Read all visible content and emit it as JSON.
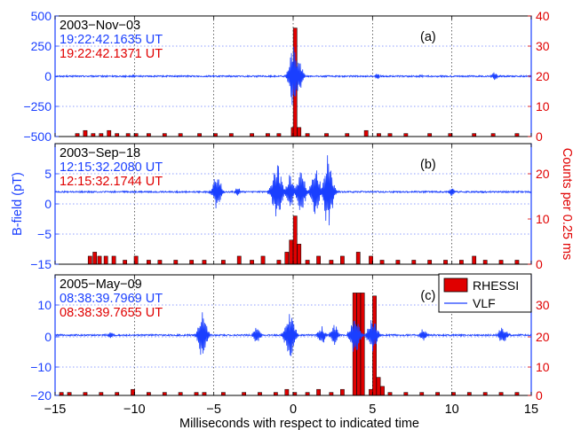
{
  "colors": {
    "left_axis": "#1a3fff",
    "right_axis": "#e00000",
    "bar_fill": "#e00000",
    "vlf_line": "#1a3fff",
    "grid": "#2040ff"
  },
  "x_axis": {
    "label": "Milliseconds with respect to indicated time",
    "range": [
      -15,
      15
    ],
    "ticks": [
      "-15",
      "-10",
      "-5",
      "0",
      "5",
      "10",
      "15"
    ]
  },
  "y_axis_label_left": "B-field (pT)",
  "y_axis_label_right": "Counts per 0.25 ms",
  "legend": {
    "rhessi": "RHESSI",
    "vlf": "VLF"
  },
  "chart_data": [
    {
      "type": "bar+line",
      "panel": "(a)",
      "date": "2003−Nov−03",
      "time_blue": "19:22:42.1635 UT",
      "time_red": "19:22:42.1371 UT",
      "ylim_left": [
        -500,
        500
      ],
      "ylim_right": [
        0,
        40
      ],
      "yticks_left": [
        "500",
        "250",
        "0",
        "−250",
        "−500"
      ],
      "yticks_right": [
        "40",
        "30",
        "20",
        "10",
        "0"
      ],
      "rhessi_counts": [
        {
          "t": -13.6,
          "c": 1
        },
        {
          "t": -13.1,
          "c": 2
        },
        {
          "t": -12.6,
          "c": 1
        },
        {
          "t": -12.1,
          "c": 1
        },
        {
          "t": -11.6,
          "c": 2
        },
        {
          "t": -11.1,
          "c": 1
        },
        {
          "t": -10.4,
          "c": 1
        },
        {
          "t": -9.9,
          "c": 1
        },
        {
          "t": -9.1,
          "c": 1
        },
        {
          "t": -8.1,
          "c": 1
        },
        {
          "t": -7.1,
          "c": 1
        },
        {
          "t": -5.9,
          "c": 1
        },
        {
          "t": -4.9,
          "c": 1
        },
        {
          "t": -3.9,
          "c": 1
        },
        {
          "t": -2.6,
          "c": 1
        },
        {
          "t": -1.6,
          "c": 1
        },
        {
          "t": -0.9,
          "c": 1
        },
        {
          "t": 0.0,
          "c": 3
        },
        {
          "t": 0.125,
          "c": 36
        },
        {
          "t": 0.375,
          "c": 3
        },
        {
          "t": 0.9,
          "c": 1
        },
        {
          "t": 2.1,
          "c": 1
        },
        {
          "t": 3.4,
          "c": 1
        },
        {
          "t": 4.6,
          "c": 2
        },
        {
          "t": 5.4,
          "c": 1
        },
        {
          "t": 6.1,
          "c": 1
        },
        {
          "t": 7.1,
          "c": 1
        },
        {
          "t": 8.6,
          "c": 1
        },
        {
          "t": 9.9,
          "c": 1
        },
        {
          "t": 11.4,
          "c": 1
        },
        {
          "t": 12.6,
          "c": 1
        },
        {
          "t": 14.1,
          "c": 1
        }
      ],
      "vlf_impulses": [
        {
          "t": -10.0,
          "a": 15,
          "w": 0.15
        },
        {
          "t": 0.0,
          "a": 300,
          "w": 0.35
        },
        {
          "t": 0.4,
          "a": 120,
          "w": 0.3
        },
        {
          "t": 5.3,
          "a": 30,
          "w": 0.2
        },
        {
          "t": 8.0,
          "a": 12,
          "w": 0.2
        },
        {
          "t": 12.7,
          "a": 40,
          "w": 0.25
        }
      ]
    },
    {
      "type": "bar+line",
      "panel": "(b)",
      "date": "2003−Sep−18",
      "time_blue": "12:15:32.2080 UT",
      "time_red": "12:15:32.1744 UT",
      "ylim_left": [
        -15,
        10
      ],
      "ylim_right": [
        0,
        30
      ],
      "yticks_left": [
        "5",
        "0",
        "−5",
        "−15"
      ],
      "yticks_right": [
        "20",
        "10",
        "0"
      ],
      "rhessi_counts": [
        {
          "t": -12.8,
          "c": 2
        },
        {
          "t": -12.5,
          "c": 3
        },
        {
          "t": -12.2,
          "c": 2
        },
        {
          "t": -11.8,
          "c": 2
        },
        {
          "t": -11.3,
          "c": 2
        },
        {
          "t": -10.6,
          "c": 1
        },
        {
          "t": -9.9,
          "c": 2
        },
        {
          "t": -9.1,
          "c": 1
        },
        {
          "t": -8.4,
          "c": 1
        },
        {
          "t": -7.4,
          "c": 1
        },
        {
          "t": -6.4,
          "c": 1
        },
        {
          "t": -5.6,
          "c": 1
        },
        {
          "t": -4.4,
          "c": 1
        },
        {
          "t": -3.4,
          "c": 2
        },
        {
          "t": -2.6,
          "c": 1
        },
        {
          "t": -1.9,
          "c": 2
        },
        {
          "t": -0.9,
          "c": 1
        },
        {
          "t": -0.4,
          "c": 3
        },
        {
          "t": -0.125,
          "c": 6
        },
        {
          "t": 0.125,
          "c": 12
        },
        {
          "t": 0.375,
          "c": 5
        },
        {
          "t": 0.9,
          "c": 1
        },
        {
          "t": 1.6,
          "c": 2
        },
        {
          "t": 2.4,
          "c": 1
        },
        {
          "t": 3.1,
          "c": 2
        },
        {
          "t": 4.1,
          "c": 3
        },
        {
          "t": 4.9,
          "c": 2
        },
        {
          "t": 5.6,
          "c": 1
        },
        {
          "t": 6.6,
          "c": 1
        },
        {
          "t": 7.6,
          "c": 1
        },
        {
          "t": 8.6,
          "c": 1
        },
        {
          "t": 9.6,
          "c": 1
        },
        {
          "t": 10.6,
          "c": 1
        },
        {
          "t": 11.4,
          "c": 2
        },
        {
          "t": 12.1,
          "c": 1
        },
        {
          "t": 13.1,
          "c": 1
        },
        {
          "t": 14.1,
          "c": 1
        }
      ],
      "vlf_impulses": [
        {
          "t": -4.8,
          "a": 4,
          "w": 0.35
        },
        {
          "t": -3.5,
          "a": 1,
          "w": 0.2
        },
        {
          "t": -1.0,
          "a": 6,
          "w": 0.45
        },
        {
          "t": -0.2,
          "a": 4,
          "w": 0.35
        },
        {
          "t": 0.5,
          "a": 5,
          "w": 0.4
        },
        {
          "t": 1.4,
          "a": 6,
          "w": 0.4
        },
        {
          "t": 2.2,
          "a": 8,
          "w": 0.4
        },
        {
          "t": 10.0,
          "a": 1,
          "w": 0.2
        }
      ]
    },
    {
      "type": "bar+line",
      "panel": "(c)",
      "date": "2005−May−09",
      "time_blue": "08:38:39.7969 UT",
      "time_red": "08:38:39.7655 UT",
      "ylim_left": [
        -20,
        20
      ],
      "ylim_right": [
        0,
        40
      ],
      "yticks_left": [
        "10",
        "0",
        "−10",
        "−20"
      ],
      "yticks_right": [
        "30",
        "20",
        "10",
        "0"
      ],
      "rhessi_counts": [
        {
          "t": -14.6,
          "c": 1
        },
        {
          "t": -14.1,
          "c": 1
        },
        {
          "t": -13.1,
          "c": 1
        },
        {
          "t": -12.1,
          "c": 1
        },
        {
          "t": -11.1,
          "c": 1
        },
        {
          "t": -10.1,
          "c": 2
        },
        {
          "t": -9.1,
          "c": 1
        },
        {
          "t": -8.1,
          "c": 1
        },
        {
          "t": -7.1,
          "c": 1
        },
        {
          "t": -6.1,
          "c": 1
        },
        {
          "t": -5.6,
          "c": 1
        },
        {
          "t": -4.4,
          "c": 1
        },
        {
          "t": -3.1,
          "c": 1
        },
        {
          "t": -2.1,
          "c": 1
        },
        {
          "t": -1.1,
          "c": 1
        },
        {
          "t": -0.4,
          "c": 2
        },
        {
          "t": 0.1,
          "c": 1
        },
        {
          "t": 0.9,
          "c": 1
        },
        {
          "t": 1.6,
          "c": 2
        },
        {
          "t": 2.4,
          "c": 1
        },
        {
          "t": 3.1,
          "c": 2
        },
        {
          "t": 3.875,
          "c": 34
        },
        {
          "t": 4.125,
          "c": 34
        },
        {
          "t": 4.375,
          "c": 34
        },
        {
          "t": 4.9,
          "c": 2
        },
        {
          "t": 5.125,
          "c": 33
        },
        {
          "t": 5.375,
          "c": 6
        },
        {
          "t": 5.625,
          "c": 3
        },
        {
          "t": 6.1,
          "c": 1
        },
        {
          "t": 7.1,
          "c": 1
        },
        {
          "t": 8.1,
          "c": 1
        },
        {
          "t": 9.1,
          "c": 1
        },
        {
          "t": 10.1,
          "c": 1
        },
        {
          "t": 11.1,
          "c": 1
        },
        {
          "t": 12.1,
          "c": 1
        },
        {
          "t": 13.1,
          "c": 1
        },
        {
          "t": 14.1,
          "c": 1
        }
      ],
      "vlf_impulses": [
        {
          "t": -11.5,
          "a": 1,
          "w": 0.2
        },
        {
          "t": -5.7,
          "a": 9,
          "w": 0.35
        },
        {
          "t": -2.3,
          "a": 3,
          "w": 0.3
        },
        {
          "t": -0.2,
          "a": 9,
          "w": 0.4
        },
        {
          "t": 1.8,
          "a": 3,
          "w": 0.3
        },
        {
          "t": 2.6,
          "a": 4,
          "w": 0.3
        },
        {
          "t": 3.9,
          "a": 7,
          "w": 0.4
        },
        {
          "t": 5.0,
          "a": 6,
          "w": 0.4
        },
        {
          "t": 8.2,
          "a": 2,
          "w": 0.3
        },
        {
          "t": 13.2,
          "a": 3,
          "w": 0.35
        }
      ]
    }
  ]
}
